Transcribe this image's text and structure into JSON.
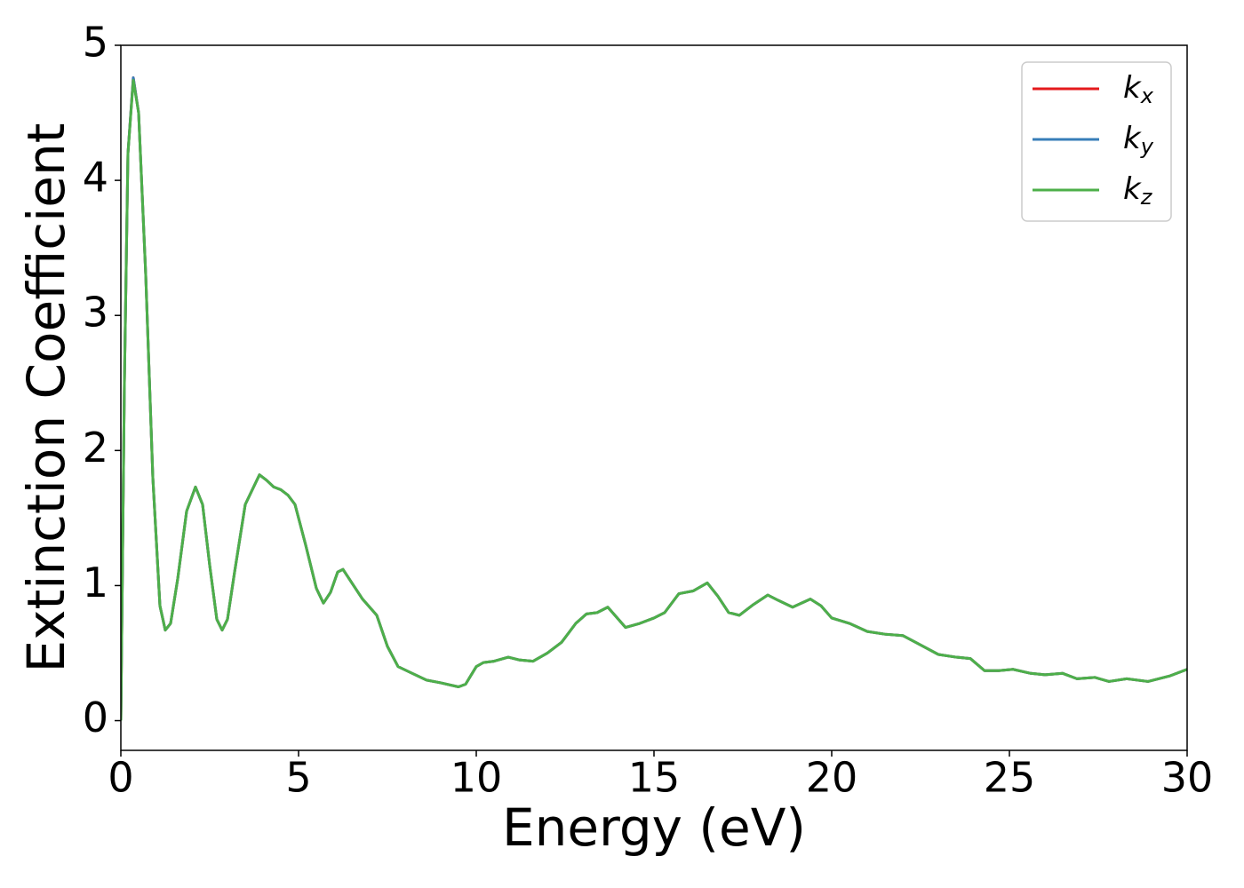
{
  "chart_data": {
    "type": "line",
    "xlabel": "Energy (eV)",
    "ylabel": "Extinction Coefficient",
    "x": [
      0,
      0.1,
      0.2,
      0.35,
      0.5,
      0.7,
      0.9,
      1.1,
      1.25,
      1.4,
      1.6,
      1.85,
      2.1,
      2.3,
      2.5,
      2.7,
      2.85,
      3.0,
      3.2,
      3.5,
      3.9,
      4.1,
      4.3,
      4.5,
      4.7,
      4.9,
      5.2,
      5.5,
      5.7,
      5.9,
      6.1,
      6.25,
      6.5,
      6.8,
      7.2,
      7.5,
      7.8,
      8.2,
      8.6,
      9.0,
      9.5,
      9.7,
      10.0,
      10.2,
      10.5,
      10.9,
      11.2,
      11.6,
      12.0,
      12.4,
      12.8,
      13.1,
      13.4,
      13.7,
      13.9,
      14.2,
      14.6,
      15.0,
      15.3,
      15.7,
      16.1,
      16.5,
      16.8,
      17.1,
      17.4,
      17.8,
      18.2,
      18.5,
      18.9,
      19.4,
      19.7,
      20.0,
      20.5,
      21.0,
      21.5,
      22.0,
      22.5,
      23.0,
      23.5,
      23.9,
      24.3,
      24.7,
      25.1,
      25.6,
      26.0,
      26.5,
      26.9,
      27.4,
      27.8,
      28.3,
      28.9,
      29.5,
      30.0
    ],
    "series": [
      {
        "name": "k_x",
        "color": "#e41a1c",
        "values": [
          0,
          2.5,
          4.2,
          4.76,
          4.5,
          3.3,
          1.8,
          0.85,
          0.67,
          0.72,
          1.05,
          1.55,
          1.73,
          1.6,
          1.15,
          0.75,
          0.67,
          0.75,
          1.1,
          1.6,
          1.82,
          1.78,
          1.73,
          1.71,
          1.67,
          1.6,
          1.3,
          0.98,
          0.87,
          0.95,
          1.1,
          1.12,
          1.02,
          0.9,
          0.78,
          0.55,
          0.4,
          0.35,
          0.3,
          0.28,
          0.25,
          0.27,
          0.4,
          0.43,
          0.44,
          0.47,
          0.45,
          0.44,
          0.5,
          0.58,
          0.72,
          0.79,
          0.8,
          0.84,
          0.78,
          0.69,
          0.72,
          0.76,
          0.8,
          0.94,
          0.96,
          1.02,
          0.92,
          0.8,
          0.78,
          0.86,
          0.93,
          0.89,
          0.84,
          0.9,
          0.85,
          0.76,
          0.72,
          0.66,
          0.64,
          0.63,
          0.56,
          0.49,
          0.47,
          0.46,
          0.37,
          0.37,
          0.38,
          0.35,
          0.34,
          0.35,
          0.31,
          0.32,
          0.29,
          0.31,
          0.29,
          0.33,
          0.38
        ]
      },
      {
        "name": "k_y",
        "color": "#377eb8",
        "values": [
          0,
          2.5,
          4.2,
          4.76,
          4.5,
          3.3,
          1.8,
          0.85,
          0.67,
          0.72,
          1.05,
          1.55,
          1.73,
          1.6,
          1.15,
          0.75,
          0.67,
          0.75,
          1.1,
          1.6,
          1.82,
          1.78,
          1.73,
          1.71,
          1.67,
          1.6,
          1.3,
          0.98,
          0.87,
          0.95,
          1.1,
          1.12,
          1.02,
          0.9,
          0.78,
          0.55,
          0.4,
          0.35,
          0.3,
          0.28,
          0.25,
          0.27,
          0.4,
          0.43,
          0.44,
          0.47,
          0.45,
          0.44,
          0.5,
          0.58,
          0.72,
          0.79,
          0.8,
          0.84,
          0.78,
          0.69,
          0.72,
          0.76,
          0.8,
          0.94,
          0.96,
          1.02,
          0.92,
          0.8,
          0.78,
          0.86,
          0.93,
          0.89,
          0.84,
          0.9,
          0.85,
          0.76,
          0.72,
          0.66,
          0.64,
          0.63,
          0.56,
          0.49,
          0.47,
          0.46,
          0.37,
          0.37,
          0.38,
          0.35,
          0.34,
          0.35,
          0.31,
          0.32,
          0.29,
          0.31,
          0.29,
          0.33,
          0.38
        ]
      },
      {
        "name": "k_z",
        "color": "#4daf4a",
        "values": [
          0,
          2.5,
          4.2,
          4.74,
          4.5,
          3.3,
          1.8,
          0.85,
          0.67,
          0.72,
          1.05,
          1.55,
          1.73,
          1.6,
          1.15,
          0.75,
          0.67,
          0.75,
          1.1,
          1.6,
          1.82,
          1.78,
          1.73,
          1.71,
          1.67,
          1.6,
          1.3,
          0.98,
          0.87,
          0.95,
          1.1,
          1.12,
          1.02,
          0.9,
          0.78,
          0.55,
          0.4,
          0.35,
          0.3,
          0.28,
          0.25,
          0.27,
          0.4,
          0.43,
          0.44,
          0.47,
          0.45,
          0.44,
          0.5,
          0.58,
          0.72,
          0.79,
          0.8,
          0.84,
          0.78,
          0.69,
          0.72,
          0.76,
          0.8,
          0.94,
          0.96,
          1.02,
          0.92,
          0.8,
          0.78,
          0.86,
          0.93,
          0.89,
          0.84,
          0.9,
          0.85,
          0.76,
          0.72,
          0.66,
          0.64,
          0.63,
          0.56,
          0.49,
          0.47,
          0.46,
          0.37,
          0.37,
          0.38,
          0.35,
          0.34,
          0.35,
          0.31,
          0.32,
          0.29,
          0.31,
          0.29,
          0.33,
          0.38
        ]
      }
    ],
    "xlim": [
      0,
      30
    ],
    "xticks": [
      0,
      5,
      10,
      15,
      20,
      25,
      30
    ],
    "ylim": [
      -0.22,
      5
    ],
    "yticks": [
      0,
      1,
      2,
      3,
      4,
      5
    ],
    "grid": false,
    "legend": "upper right"
  }
}
